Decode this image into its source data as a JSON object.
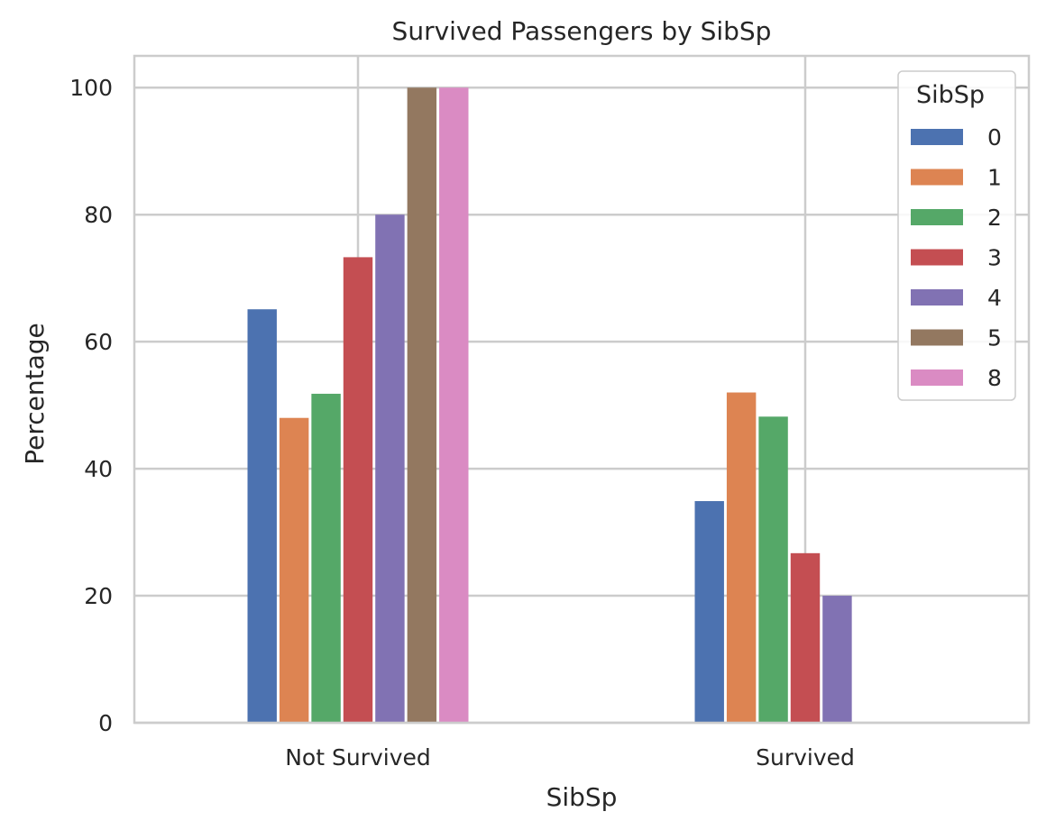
{
  "chart_data": {
    "type": "bar",
    "title": "Survived Passengers by SibSp",
    "xlabel": "SibSp",
    "ylabel": "Percentage",
    "categories": [
      "Not Survived",
      "Survived"
    ],
    "ylim": [
      0,
      105
    ],
    "yticks": [
      0,
      20,
      40,
      60,
      80,
      100
    ],
    "grid": true,
    "legend": {
      "title": "SibSp",
      "placement": "top-right"
    },
    "series": [
      {
        "name": "0",
        "color": "#4c72b0",
        "values": [
          65.1,
          34.9
        ]
      },
      {
        "name": "1",
        "color": "#dd8452",
        "values": [
          48.0,
          52.0
        ]
      },
      {
        "name": "2",
        "color": "#55a868",
        "values": [
          51.8,
          48.2
        ]
      },
      {
        "name": "3",
        "color": "#c44e52",
        "values": [
          73.3,
          26.7
        ]
      },
      {
        "name": "4",
        "color": "#8172b3",
        "values": [
          80.0,
          20.0
        ]
      },
      {
        "name": "5",
        "color": "#937860",
        "values": [
          100.0,
          0.0
        ]
      },
      {
        "name": "8",
        "color": "#da8bc3",
        "values": [
          100.0,
          0.0
        ]
      }
    ]
  }
}
